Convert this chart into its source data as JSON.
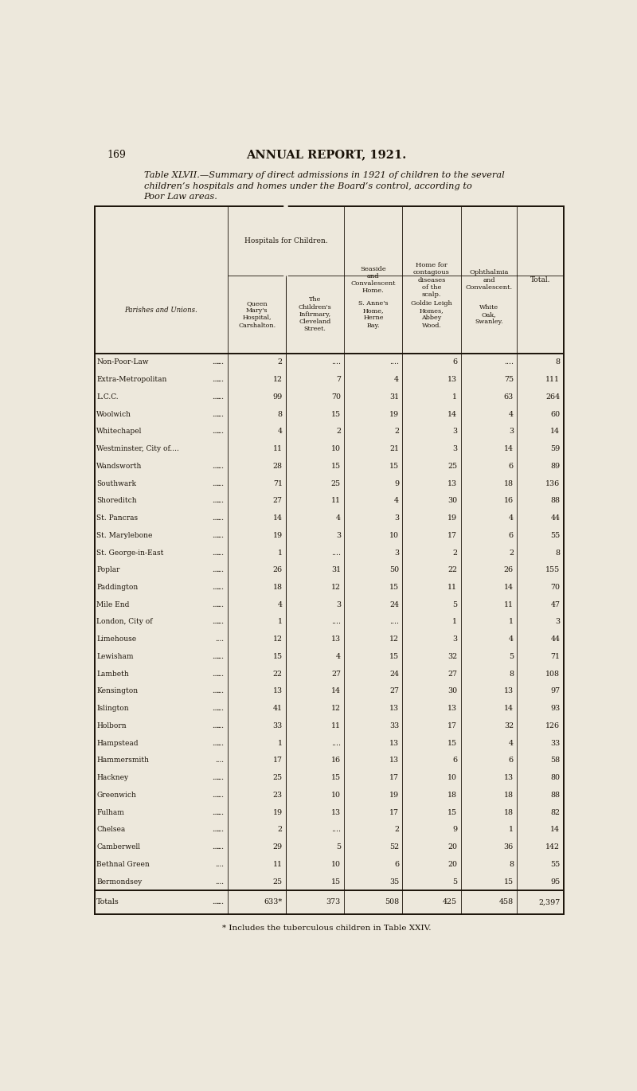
{
  "page_number": "169",
  "page_header": "ANNUAL REPORT, 1921.",
  "title_line1": "Table XLVII.—Summary of direct admissions in 1921 of children to the several",
  "title_line2": "children’s hospitals and homes under the Board’s control, according to",
  "title_line3": "Poor Law areas.",
  "footnote": "* Includes the tuberculous children in Table XXIV.",
  "bg_color": "#ede8dc",
  "text_color": "#1a1208",
  "line_color": "#1a1208",
  "table_rows": [
    [
      "Bermondsey",
      "....",
      "25",
      "15",
      "35",
      "5",
      "15",
      "95"
    ],
    [
      "Bethnal Green",
      "....",
      "11",
      "10",
      "6",
      "20",
      "8",
      "55"
    ],
    [
      "Camberwell",
      "....",
      "29",
      "5",
      "52",
      "20",
      "36",
      "142"
    ],
    [
      "Chelsea",
      "....",
      "2",
      "....",
      "2",
      "9",
      "1",
      "14"
    ],
    [
      "Fulham",
      "....",
      "19",
      "13",
      "17",
      "15",
      "18",
      "82"
    ],
    [
      "Greenwich",
      "....",
      "23",
      "10",
      "19",
      "18",
      "18",
      "88"
    ],
    [
      "Hackney",
      "....",
      "25",
      "15",
      "17",
      "10",
      "13",
      "80"
    ],
    [
      "Hammersmith",
      "....",
      "17",
      "16",
      "13",
      "6",
      "6",
      "58"
    ],
    [
      "Hampstead",
      "....",
      "1",
      "....",
      "13",
      "15",
      "4",
      "33"
    ],
    [
      "Holborn",
      "....",
      "33",
      "11",
      "33",
      "17",
      "32",
      "126"
    ],
    [
      "Islington",
      "....",
      "41",
      "12",
      "13",
      "13",
      "14",
      "93"
    ],
    [
      "Kensington",
      "....",
      "13",
      "14",
      "27",
      "30",
      "13",
      "97"
    ],
    [
      "Lambeth",
      "....",
      "22",
      "27",
      "24",
      "27",
      "8",
      "108"
    ],
    [
      "Lewisham",
      "....",
      "15",
      "4",
      "15",
      "32",
      "5",
      "71"
    ],
    [
      "Limehouse",
      "...",
      "12",
      "13",
      "12",
      "3",
      "4",
      "44"
    ],
    [
      "London, City of",
      "....",
      "1",
      "....",
      "....",
      "1",
      "1",
      "3"
    ],
    [
      "Mile End",
      "....",
      "4",
      "3",
      "24",
      "5",
      "11",
      "47"
    ],
    [
      "Paddington",
      "....",
      "18",
      "12",
      "15",
      "11",
      "14",
      "70"
    ],
    [
      "Poplar",
      "....",
      "26",
      "31",
      "50",
      "22",
      "26",
      "155"
    ],
    [
      "St. George-in-East",
      "....",
      "1",
      "....",
      "3",
      "2",
      "2",
      "8"
    ],
    [
      "St. Marylebone",
      "....",
      "19",
      "3",
      "10",
      "17",
      "6",
      "55"
    ],
    [
      "St. Pancras",
      "....",
      "14",
      "4",
      "3",
      "19",
      "4",
      "44"
    ],
    [
      "Shoreditch",
      "....",
      "27",
      "11",
      "4",
      "30",
      "16",
      "88"
    ],
    [
      "Southwark",
      "....",
      "71",
      "25",
      "9",
      "13",
      "18",
      "136"
    ],
    [
      "Wandsworth",
      "....",
      "28",
      "15",
      "15",
      "25",
      "6",
      "89"
    ],
    [
      "Westminster, City of....",
      "11",
      "10",
      "21",
      "3",
      "14",
      "59",
      ""
    ],
    [
      "Whitechapel",
      "....",
      "4",
      "2",
      "2",
      "3",
      "3",
      "14"
    ],
    [
      "Woolwich",
      "....",
      "8",
      "15",
      "19",
      "14",
      "4",
      "60"
    ],
    [
      "L.C.C.",
      "....",
      "99",
      "70",
      "31",
      "1",
      "63",
      "264"
    ],
    [
      "Extra-Metropolitan",
      "....",
      "12",
      "7",
      "4",
      "13",
      "75",
      "111"
    ],
    [
      "Non-Poor-Law",
      "...",
      "2",
      "....",
      "....",
      "6",
      "....",
      "8"
    ]
  ],
  "totals": [
    "Totals",
    "....",
    "....",
    "633*",
    "373",
    "508",
    "425",
    "458",
    "2,397"
  ]
}
